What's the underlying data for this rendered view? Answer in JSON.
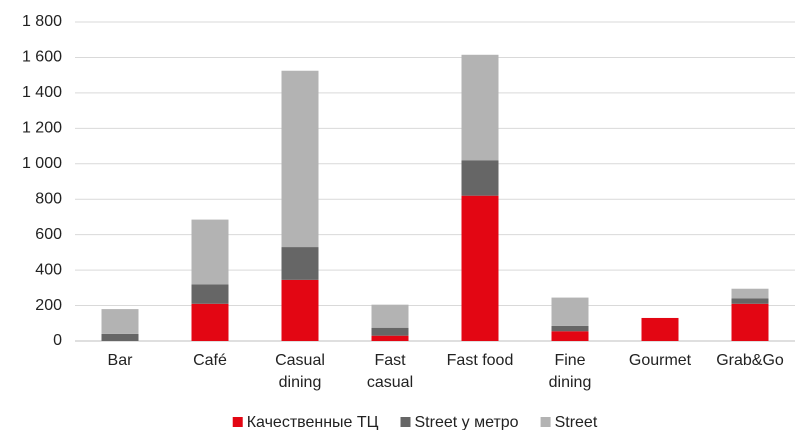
{
  "chart_data": {
    "type": "stacked-bar",
    "categories": [
      "Bar",
      "Café",
      "Casual\ndining",
      "Fast\ncasual",
      "Fast food",
      "Fine\ndining",
      "Gourmet",
      "Grab&Go"
    ],
    "series": [
      {
        "name": "Качественные ТЦ",
        "color": "#e30613",
        "values": [
          0,
          210,
          345,
          30,
          820,
          55,
          130,
          210
        ]
      },
      {
        "name": "Street у метро",
        "color": "#666666",
        "values": [
          40,
          110,
          185,
          45,
          200,
          30,
          0,
          30
        ]
      },
      {
        "name": "Street",
        "color": "#b3b3b3",
        "values": [
          140,
          365,
          995,
          130,
          595,
          160,
          0,
          55
        ]
      }
    ],
    "ylim": [
      0,
      1800
    ],
    "yticks": [
      0,
      200,
      400,
      600,
      800,
      {
        "value": 1000,
        "label": "1 000"
      },
      {
        "value": 1200,
        "label": "1 200"
      },
      {
        "value": 1400,
        "label": "1 400"
      },
      {
        "value": 1600,
        "label": "1 600"
      },
      {
        "value": 1800,
        "label": "1 800"
      }
    ],
    "grid": true,
    "legend": "bottom"
  }
}
